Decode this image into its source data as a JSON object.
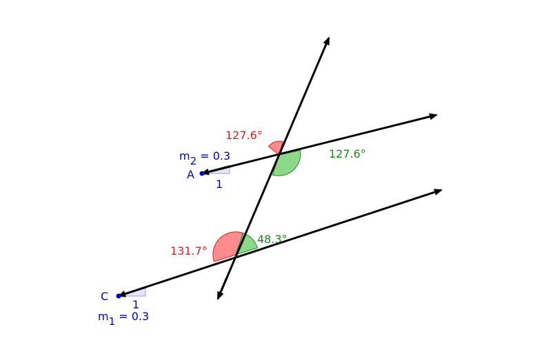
{
  "colors": {
    "line": "#000000",
    "point": "#0000cc",
    "label_blue": "#0000cc",
    "angle_red": "#ff6666",
    "angle_red_text": "#e01c1c",
    "angle_green": "#66cc66",
    "angle_green_text": "#1a8a1a",
    "slope_triangle": "#9999ff"
  },
  "points": {
    "a_label": "A",
    "c_label": "C"
  },
  "slopes": {
    "upper": {
      "m_text": "m",
      "sub": "2",
      "eq_text": " = 0.3",
      "run_label": "1"
    },
    "lower": {
      "m_text": "m",
      "sub": "1",
      "eq_text": " = 0.3",
      "run_label": "1"
    }
  },
  "angles": {
    "upper_red": "127.6°",
    "upper_green": "127.6°",
    "lower_red": "131.7°",
    "lower_green": "48.3°"
  }
}
